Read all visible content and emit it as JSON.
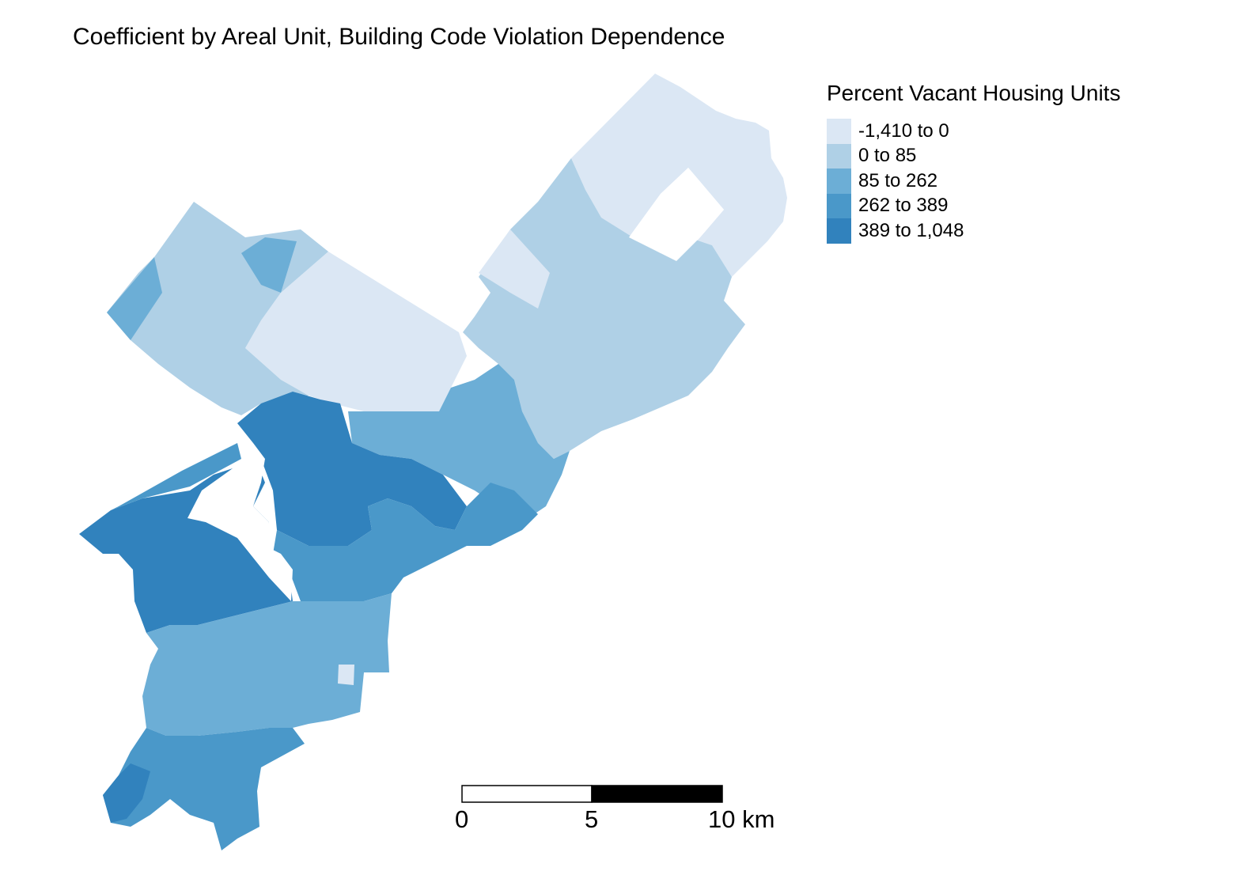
{
  "title": "Coefficient by Areal Unit, Building Code Violation Dependence",
  "legend": {
    "title": "Percent Vacant Housing Units",
    "classes": [
      {
        "label": "-1,410 to 0",
        "color": "#dbe7f4"
      },
      {
        "label": "0 to 85",
        "color": "#afd0e6"
      },
      {
        "label": "85 to 262",
        "color": "#6caed6"
      },
      {
        "label": "262 to 389",
        "color": "#4a98c9"
      },
      {
        "label": "389 to 1,048",
        "color": "#3182bd"
      }
    ]
  },
  "scale_bar": {
    "labels": [
      "0",
      "5",
      "10 km"
    ],
    "unit": "km"
  }
}
